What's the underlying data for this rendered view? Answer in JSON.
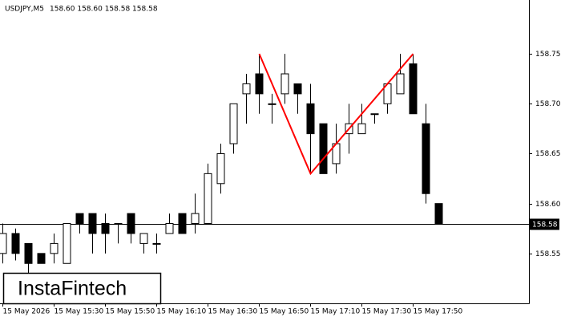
{
  "chart_data": {
    "type": "candlestick",
    "title": "USDJPY,M5",
    "header_values": "158.60 158.60 158.58 158.58",
    "brand": "InstaFintech",
    "categories": [
      "15 May 2026",
      null,
      null,
      null,
      "15 May 15:30",
      null,
      null,
      null,
      "15 May 15:50",
      null,
      null,
      null,
      "15 May 16:10",
      null,
      null,
      null,
      "15 May 16:30",
      null,
      null,
      null,
      "15 May 16:50",
      null,
      null,
      null,
      "15 May 17:10",
      null,
      null,
      null,
      "15 May 17:30",
      null,
      null,
      null,
      "15 May 17:50",
      null,
      null
    ],
    "open": [
      158.55,
      158.57,
      158.56,
      158.55,
      158.55,
      158.54,
      158.59,
      158.59,
      158.58,
      158.58,
      158.59,
      158.56,
      158.56,
      158.57,
      158.59,
      158.58,
      158.58,
      158.62,
      158.66,
      158.71,
      158.73,
      158.7,
      158.71,
      158.72,
      158.7,
      158.68,
      158.64,
      158.67,
      158.67,
      158.69,
      158.7,
      158.71,
      158.74,
      158.68,
      158.6
    ],
    "high": [
      158.58,
      158.575,
      158.56,
      158.55,
      158.57,
      158.58,
      158.59,
      158.59,
      158.59,
      158.58,
      158.59,
      158.57,
      158.57,
      158.59,
      158.59,
      158.61,
      158.64,
      158.66,
      158.7,
      158.73,
      158.75,
      158.71,
      158.75,
      158.72,
      158.72,
      158.68,
      158.68,
      158.7,
      158.7,
      158.69,
      158.72,
      158.75,
      158.75,
      158.7,
      158.6
    ],
    "low": [
      158.54,
      158.543,
      158.53,
      158.54,
      158.54,
      158.54,
      158.57,
      158.55,
      158.55,
      158.56,
      158.56,
      158.55,
      158.55,
      158.57,
      158.57,
      158.57,
      158.58,
      158.61,
      158.65,
      158.68,
      158.69,
      158.68,
      158.7,
      158.69,
      158.63,
      158.63,
      158.63,
      158.65,
      158.67,
      158.68,
      158.69,
      158.71,
      158.69,
      158.6,
      158.58
    ],
    "close": [
      158.57,
      158.55,
      158.54,
      158.54,
      158.56,
      158.58,
      158.58,
      158.57,
      158.57,
      158.58,
      158.57,
      158.57,
      158.56,
      158.58,
      158.57,
      158.59,
      158.63,
      158.65,
      158.7,
      158.72,
      158.71,
      158.7,
      158.73,
      158.71,
      158.67,
      158.63,
      158.66,
      158.68,
      158.68,
      158.69,
      158.72,
      158.73,
      158.69,
      158.61,
      158.58
    ],
    "up_color": "#ffffff",
    "down_color": "#000000",
    "pattern": {
      "color": "#ff0000",
      "x_index": [
        20,
        24,
        32
      ],
      "values": [
        158.75,
        158.63,
        158.75
      ]
    },
    "last_price": 158.58,
    "ylim": [
      158.5,
      158.804
    ],
    "yticks": [
      158.55,
      {
        "value": 158.6,
        "label": "158.60"
      },
      158.65,
      {
        "value": 158.7,
        "label": "158.70"
      },
      158.75
    ]
  }
}
